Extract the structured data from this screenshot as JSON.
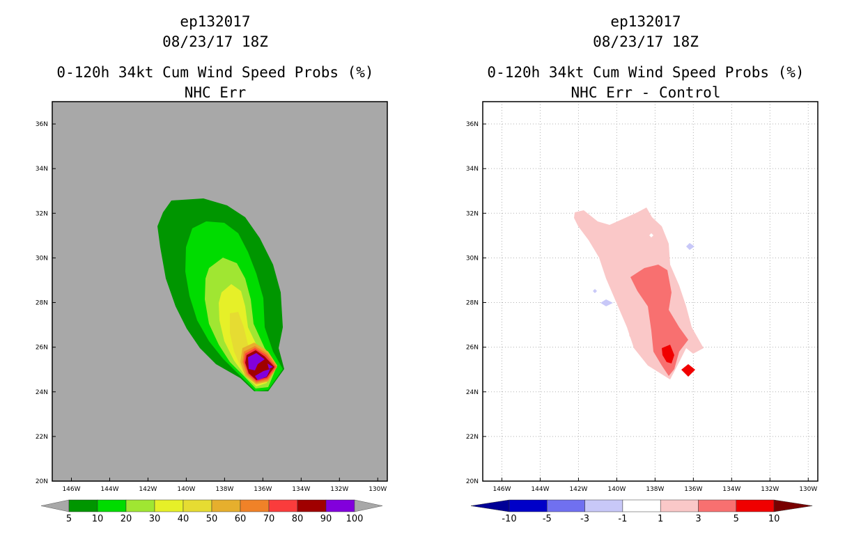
{
  "chart_data": [
    {
      "type": "filled-contour-map",
      "title_lines": [
        "ep132017",
        "08/23/17 18Z",
        "0-120h 34kt Cum Wind Speed Probs (%)",
        "NHC Err"
      ],
      "lon_ticks": [
        "146W",
        "144W",
        "142W",
        "140W",
        "138W",
        "136W",
        "134W",
        "132W",
        "130W"
      ],
      "lat_ticks": [
        "20N",
        "22N",
        "24N",
        "26N",
        "28N",
        "30N",
        "32N",
        "34N",
        "36N"
      ],
      "xlim": [
        -147,
        -129.5
      ],
      "ylim": [
        20,
        37
      ],
      "background_color": "#a8a8a8",
      "colorbar": {
        "labels": [
          "5",
          "10",
          "20",
          "30",
          "40",
          "50",
          "60",
          "70",
          "80",
          "90",
          "100"
        ],
        "colors": [
          "#009600",
          "#00dc00",
          "#a0e632",
          "#e6f028",
          "#e6dc32",
          "#e6af2d",
          "#f08228",
          "#fa3c3c",
          "#a00000",
          "#8200dc"
        ],
        "end_color": "#a8a8a8"
      }
    },
    {
      "type": "filled-contour-map",
      "title_lines": [
        "ep132017",
        "08/23/17 18Z",
        "0-120h 34kt Cum Wind Speed Probs (%)",
        "NHC Err - Control"
      ],
      "lon_ticks": [
        "146W",
        "144W",
        "142W",
        "140W",
        "138W",
        "136W",
        "134W",
        "132W",
        "130W"
      ],
      "lat_ticks": [
        "20N",
        "22N",
        "24N",
        "26N",
        "28N",
        "30N",
        "32N",
        "34N",
        "36N"
      ],
      "xlim": [
        -147,
        -129.5
      ],
      "ylim": [
        20,
        37
      ],
      "grid": true,
      "colorbar": {
        "labels": [
          "-10",
          "-5",
          "-3",
          "-1",
          "1",
          "3",
          "5",
          "10"
        ],
        "colors": [
          "#0000c8",
          "#7070f0",
          "#c8c8f8",
          "#ffffff",
          "#fac8c8",
          "#f87070",
          "#f00000"
        ],
        "low_color": "#000096",
        "high_color": "#780000"
      }
    }
  ]
}
